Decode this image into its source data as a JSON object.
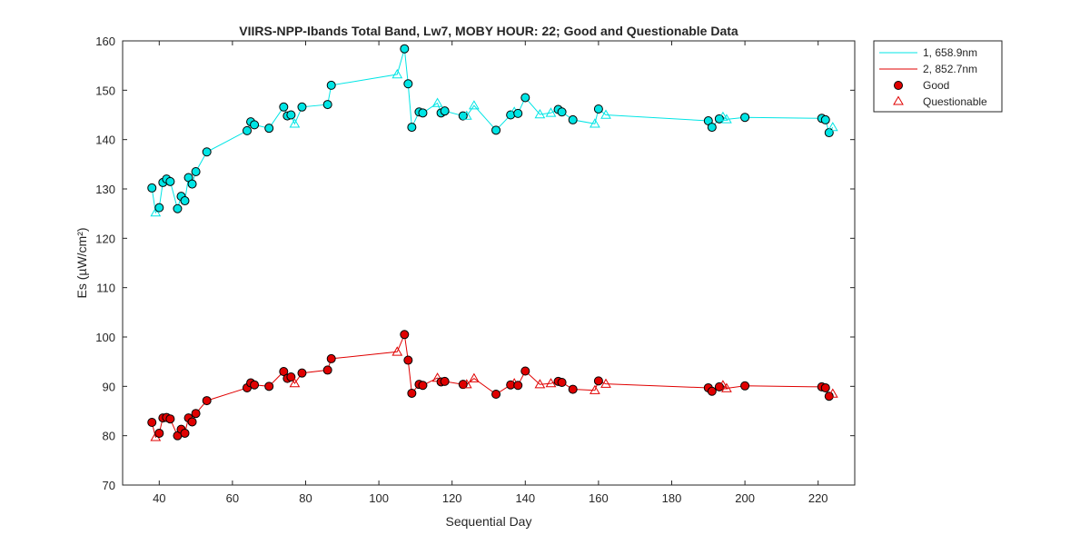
{
  "chart_data": {
    "type": "line",
    "title": "VIIRS-NPP-Ibands Total Band,  Lw7, MOBY HOUR: 22;  Good and Questionable Data",
    "xlabel": "Sequential Day",
    "ylabel": "Es (µW/cm²)",
    "xlim": [
      30,
      230
    ],
    "ylim": [
      70,
      160
    ],
    "xticks": [
      40,
      60,
      80,
      100,
      120,
      140,
      160,
      180,
      200,
      220
    ],
    "yticks": [
      70,
      80,
      90,
      100,
      110,
      120,
      130,
      140,
      150,
      160
    ],
    "legend": {
      "position": "outside-top-right",
      "entries": [
        "1, 658.9nm",
        "2, 852.7nm",
        "Good",
        "Questionable"
      ]
    },
    "series": [
      {
        "name": "1, 658.9nm",
        "color": "#00e5e5",
        "marker_fill": "#00e5e5",
        "points": [
          {
            "x": 38,
            "y": 130.2,
            "q": "good"
          },
          {
            "x": 39,
            "y": 125.2,
            "q": "questionable"
          },
          {
            "x": 40,
            "y": 126.2,
            "q": "good"
          },
          {
            "x": 41,
            "y": 131.3,
            "q": "good"
          },
          {
            "x": 42,
            "y": 132.0,
            "q": "good"
          },
          {
            "x": 43,
            "y": 131.5,
            "q": "good"
          },
          {
            "x": 45,
            "y": 126.0,
            "q": "good"
          },
          {
            "x": 46,
            "y": 128.5,
            "q": "good"
          },
          {
            "x": 47,
            "y": 127.6,
            "q": "good"
          },
          {
            "x": 48,
            "y": 132.3,
            "q": "good"
          },
          {
            "x": 49,
            "y": 131.0,
            "q": "good"
          },
          {
            "x": 50,
            "y": 133.5,
            "q": "good"
          },
          {
            "x": 53,
            "y": 137.5,
            "q": "good"
          },
          {
            "x": 64,
            "y": 141.8,
            "q": "good"
          },
          {
            "x": 65,
            "y": 143.6,
            "q": "good"
          },
          {
            "x": 66,
            "y": 143.0,
            "q": "good"
          },
          {
            "x": 70,
            "y": 142.3,
            "q": "good"
          },
          {
            "x": 74,
            "y": 146.6,
            "q": "good"
          },
          {
            "x": 75,
            "y": 144.8,
            "q": "good"
          },
          {
            "x": 76,
            "y": 145.0,
            "q": "good"
          },
          {
            "x": 77,
            "y": 143.2,
            "q": "questionable"
          },
          {
            "x": 79,
            "y": 146.6,
            "q": "good"
          },
          {
            "x": 86,
            "y": 147.1,
            "q": "good"
          },
          {
            "x": 87,
            "y": 151.0,
            "q": "good"
          },
          {
            "x": 105,
            "y": 153.2,
            "q": "questionable"
          },
          {
            "x": 107,
            "y": 158.4,
            "q": "good"
          },
          {
            "x": 108,
            "y": 151.3,
            "q": "good"
          },
          {
            "x": 109,
            "y": 142.5,
            "q": "good"
          },
          {
            "x": 111,
            "y": 145.6,
            "q": "good"
          },
          {
            "x": 112,
            "y": 145.4,
            "q": "good"
          },
          {
            "x": 116,
            "y": 147.4,
            "q": "questionable"
          },
          {
            "x": 117,
            "y": 145.4,
            "q": "good"
          },
          {
            "x": 118,
            "y": 145.8,
            "q": "good"
          },
          {
            "x": 123,
            "y": 144.8,
            "q": "good"
          },
          {
            "x": 124,
            "y": 144.8,
            "q": "questionable"
          },
          {
            "x": 126,
            "y": 146.9,
            "q": "questionable"
          },
          {
            "x": 132,
            "y": 141.9,
            "q": "good"
          },
          {
            "x": 136,
            "y": 145.0,
            "q": "good"
          },
          {
            "x": 137,
            "y": 145.6,
            "q": "questionable"
          },
          {
            "x": 138,
            "y": 145.3,
            "q": "good"
          },
          {
            "x": 140,
            "y": 148.5,
            "q": "good"
          },
          {
            "x": 144,
            "y": 145.1,
            "q": "questionable"
          },
          {
            "x": 147,
            "y": 145.4,
            "q": "questionable"
          },
          {
            "x": 149,
            "y": 146.1,
            "q": "good"
          },
          {
            "x": 150,
            "y": 145.6,
            "q": "good"
          },
          {
            "x": 153,
            "y": 144.0,
            "q": "good"
          },
          {
            "x": 159,
            "y": 143.2,
            "q": "questionable"
          },
          {
            "x": 160,
            "y": 146.2,
            "q": "good"
          },
          {
            "x": 162,
            "y": 145.0,
            "q": "questionable"
          },
          {
            "x": 190,
            "y": 143.8,
            "q": "good"
          },
          {
            "x": 191,
            "y": 142.5,
            "q": "good"
          },
          {
            "x": 193,
            "y": 144.2,
            "q": "good"
          },
          {
            "x": 194,
            "y": 144.6,
            "q": "questionable"
          },
          {
            "x": 195,
            "y": 144.1,
            "q": "questionable"
          },
          {
            "x": 200,
            "y": 144.5,
            "q": "good"
          },
          {
            "x": 221,
            "y": 144.3,
            "q": "good"
          },
          {
            "x": 222,
            "y": 144.0,
            "q": "good"
          },
          {
            "x": 223,
            "y": 141.4,
            "q": "good"
          },
          {
            "x": 224,
            "y": 142.5,
            "q": "questionable"
          }
        ]
      },
      {
        "name": "2, 852.7nm",
        "color": "#e00000",
        "marker_fill": "#e00000",
        "points": [
          {
            "x": 38,
            "y": 82.7,
            "q": "good"
          },
          {
            "x": 39,
            "y": 79.7,
            "q": "questionable"
          },
          {
            "x": 40,
            "y": 80.5,
            "q": "good"
          },
          {
            "x": 41,
            "y": 83.6,
            "q": "good"
          },
          {
            "x": 42,
            "y": 83.7,
            "q": "good"
          },
          {
            "x": 43,
            "y": 83.4,
            "q": "good"
          },
          {
            "x": 45,
            "y": 80.0,
            "q": "good"
          },
          {
            "x": 46,
            "y": 81.3,
            "q": "good"
          },
          {
            "x": 47,
            "y": 80.5,
            "q": "good"
          },
          {
            "x": 48,
            "y": 83.6,
            "q": "good"
          },
          {
            "x": 49,
            "y": 82.8,
            "q": "good"
          },
          {
            "x": 50,
            "y": 84.5,
            "q": "good"
          },
          {
            "x": 53,
            "y": 87.1,
            "q": "good"
          },
          {
            "x": 64,
            "y": 89.7,
            "q": "good"
          },
          {
            "x": 65,
            "y": 90.7,
            "q": "good"
          },
          {
            "x": 66,
            "y": 90.3,
            "q": "good"
          },
          {
            "x": 70,
            "y": 90.0,
            "q": "good"
          },
          {
            "x": 74,
            "y": 93.0,
            "q": "good"
          },
          {
            "x": 75,
            "y": 91.6,
            "q": "good"
          },
          {
            "x": 76,
            "y": 91.9,
            "q": "good"
          },
          {
            "x": 77,
            "y": 90.6,
            "q": "questionable"
          },
          {
            "x": 79,
            "y": 92.7,
            "q": "good"
          },
          {
            "x": 86,
            "y": 93.3,
            "q": "good"
          },
          {
            "x": 87,
            "y": 95.6,
            "q": "good"
          },
          {
            "x": 105,
            "y": 97.0,
            "q": "questionable"
          },
          {
            "x": 107,
            "y": 100.5,
            "q": "good"
          },
          {
            "x": 108,
            "y": 95.3,
            "q": "good"
          },
          {
            "x": 109,
            "y": 88.6,
            "q": "good"
          },
          {
            "x": 111,
            "y": 90.4,
            "q": "good"
          },
          {
            "x": 112,
            "y": 90.2,
            "q": "good"
          },
          {
            "x": 116,
            "y": 91.7,
            "q": "questionable"
          },
          {
            "x": 117,
            "y": 90.9,
            "q": "good"
          },
          {
            "x": 118,
            "y": 91.0,
            "q": "good"
          },
          {
            "x": 123,
            "y": 90.4,
            "q": "good"
          },
          {
            "x": 124,
            "y": 90.4,
            "q": "questionable"
          },
          {
            "x": 126,
            "y": 91.6,
            "q": "questionable"
          },
          {
            "x": 132,
            "y": 88.4,
            "q": "good"
          },
          {
            "x": 136,
            "y": 90.3,
            "q": "good"
          },
          {
            "x": 137,
            "y": 90.6,
            "q": "questionable"
          },
          {
            "x": 138,
            "y": 90.2,
            "q": "good"
          },
          {
            "x": 140,
            "y": 93.1,
            "q": "good"
          },
          {
            "x": 144,
            "y": 90.4,
            "q": "questionable"
          },
          {
            "x": 147,
            "y": 90.6,
            "q": "questionable"
          },
          {
            "x": 149,
            "y": 91.0,
            "q": "good"
          },
          {
            "x": 150,
            "y": 90.8,
            "q": "good"
          },
          {
            "x": 153,
            "y": 89.4,
            "q": "good"
          },
          {
            "x": 159,
            "y": 89.2,
            "q": "questionable"
          },
          {
            "x": 160,
            "y": 91.1,
            "q": "good"
          },
          {
            "x": 162,
            "y": 90.5,
            "q": "questionable"
          },
          {
            "x": 190,
            "y": 89.7,
            "q": "good"
          },
          {
            "x": 191,
            "y": 89.0,
            "q": "good"
          },
          {
            "x": 193,
            "y": 89.9,
            "q": "good"
          },
          {
            "x": 194,
            "y": 90.2,
            "q": "questionable"
          },
          {
            "x": 195,
            "y": 89.6,
            "q": "questionable"
          },
          {
            "x": 200,
            "y": 90.1,
            "q": "good"
          },
          {
            "x": 221,
            "y": 89.9,
            "q": "good"
          },
          {
            "x": 222,
            "y": 89.7,
            "q": "good"
          },
          {
            "x": 223,
            "y": 88.0,
            "q": "good"
          },
          {
            "x": 224,
            "y": 88.5,
            "q": "questionable"
          }
        ]
      }
    ]
  }
}
